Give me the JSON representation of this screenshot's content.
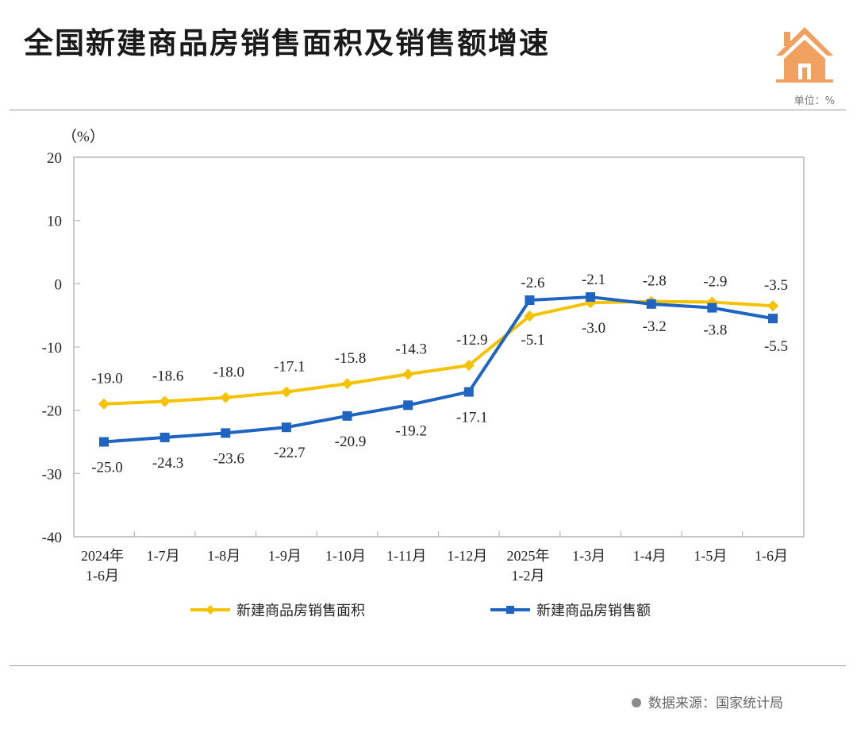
{
  "header": {
    "title": "全国新建商品房销售面积及销售额增速",
    "unit": "单位：%",
    "icon": "house-icon",
    "icon_color": "#F0A160"
  },
  "footer": {
    "source": "数据来源：国家统计局"
  },
  "chart_data": {
    "type": "line",
    "title": "全国新建商品房销售面积及销售额增速",
    "ylabel": "（%）",
    "xlabel": "",
    "ylim": [
      -40,
      20
    ],
    "yticks": [
      20,
      10,
      0,
      -10,
      -20,
      -30,
      -40
    ],
    "grid": false,
    "legend_position": "bottom",
    "categories": [
      [
        "2024年",
        "1-6月"
      ],
      [
        "1-7月"
      ],
      [
        "1-8月"
      ],
      [
        "1-9月"
      ],
      [
        "1-10月"
      ],
      [
        "1-11月"
      ],
      [
        "1-12月"
      ],
      [
        "2025年",
        "1-2月"
      ],
      [
        "1-3月"
      ],
      [
        "1-4月"
      ],
      [
        "1-5月"
      ],
      [
        "1-6月"
      ]
    ],
    "series": [
      {
        "name": "新建商品房销售面积",
        "color": "#F5C200",
        "marker": "diamond",
        "values": [
          -19.0,
          -18.6,
          -18.0,
          -17.1,
          -15.8,
          -14.3,
          -12.9,
          -5.1,
          -3.0,
          -2.8,
          -2.9,
          -3.5
        ],
        "labels": [
          "-19.0",
          "-18.6",
          "-18.0",
          "-17.1",
          "-15.8",
          "-14.3",
          "-12.9",
          "-5.1",
          "-3.0",
          "-2.8",
          "-2.9",
          "-3.5"
        ]
      },
      {
        "name": "新建商品房销售额",
        "color": "#1F64C0",
        "marker": "square",
        "values": [
          -25.0,
          -24.3,
          -23.6,
          -22.7,
          -20.9,
          -19.2,
          -17.1,
          -2.6,
          -2.1,
          -3.2,
          -3.8,
          -5.5
        ],
        "labels": [
          "-25.0",
          "-24.3",
          "-23.6",
          "-22.7",
          "-20.9",
          "-19.2",
          "-17.1",
          "-2.6",
          "-2.1",
          "-3.2",
          "-3.8",
          "-5.5"
        ]
      }
    ]
  }
}
